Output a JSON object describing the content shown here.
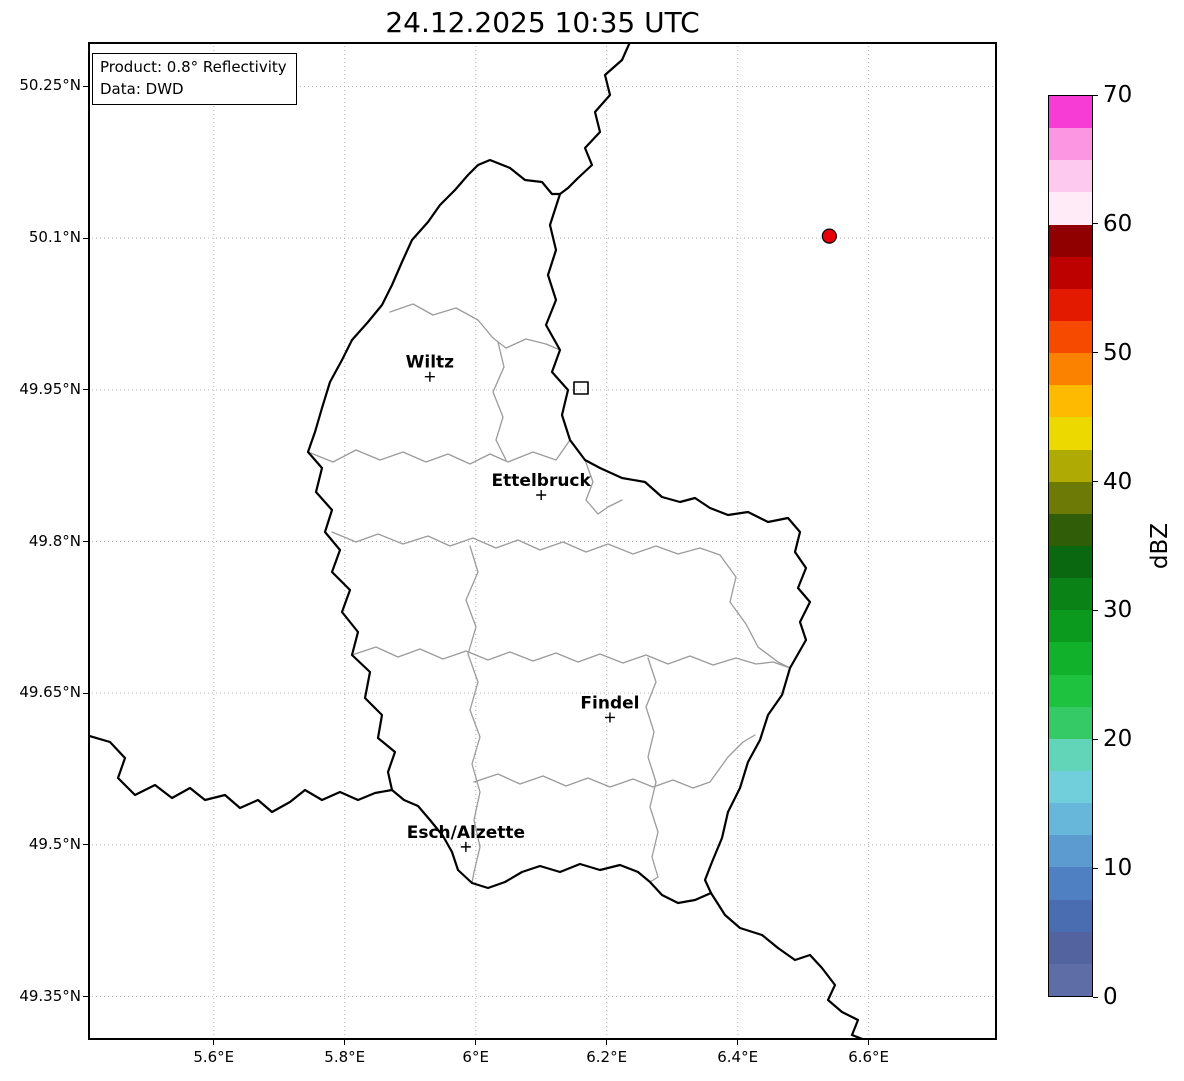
{
  "title": "24.12.2025 10:35 UTC",
  "info_box": {
    "line1": "Product: 0.8° Reflectivity",
    "line2": "Data: DWD"
  },
  "map": {
    "x_axis": {
      "range": [
        5.408,
        6.796
      ],
      "ticks": [
        {
          "value": 5.6,
          "label": "5.6°E"
        },
        {
          "value": 5.8,
          "label": "5.8°E"
        },
        {
          "value": 6.0,
          "label": "6°E"
        },
        {
          "value": 6.2,
          "label": "6.2°E"
        },
        {
          "value": 6.4,
          "label": "6.4°E"
        },
        {
          "value": 6.6,
          "label": "6.6°E"
        }
      ]
    },
    "y_axis": {
      "range": [
        49.307,
        50.294
      ],
      "ticks": [
        {
          "value": 50.25,
          "label": "50.25°N"
        },
        {
          "value": 50.1,
          "label": "50.1°N"
        },
        {
          "value": 49.95,
          "label": "49.95°N"
        },
        {
          "value": 49.8,
          "label": "49.8°N"
        },
        {
          "value": 49.65,
          "label": "49.65°N"
        },
        {
          "value": 49.5,
          "label": "49.5°N"
        },
        {
          "value": 49.35,
          "label": "49.35°N"
        }
      ]
    },
    "cities": [
      {
        "name": "Wiltz",
        "lon": 5.93,
        "lat": 49.963
      },
      {
        "name": "Ettelbruck",
        "lon": 6.1,
        "lat": 49.846
      },
      {
        "name": "Findel",
        "lon": 6.205,
        "lat": 49.626
      },
      {
        "name": "Esch/Alzette",
        "lon": 5.985,
        "lat": 49.498
      }
    ],
    "radar_marker": {
      "lon": 6.54,
      "lat": 50.102,
      "color": "#e8000b"
    }
  },
  "colorbar": {
    "label": "dBZ",
    "min": 0,
    "max": 70,
    "ticks": [
      0,
      10,
      20,
      30,
      40,
      50,
      60,
      70
    ],
    "colors": [
      "#5e6da6",
      "#53639f",
      "#4a6cb0",
      "#4f80c2",
      "#5b9bd0",
      "#67b7da",
      "#70cfdb",
      "#62d4b8",
      "#35ca65",
      "#1fc23e",
      "#12b12b",
      "#0c9a1e",
      "#0b8216",
      "#0a6810",
      "#305d08",
      "#6d7a06",
      "#b0ab04",
      "#ecd900",
      "#fdba00",
      "#fb8200",
      "#f64a00",
      "#e31a00",
      "#bd0000",
      "#900000",
      "#ffeaf8",
      "#fec9ef",
      "#fc96e3",
      "#f63cd4"
    ]
  }
}
